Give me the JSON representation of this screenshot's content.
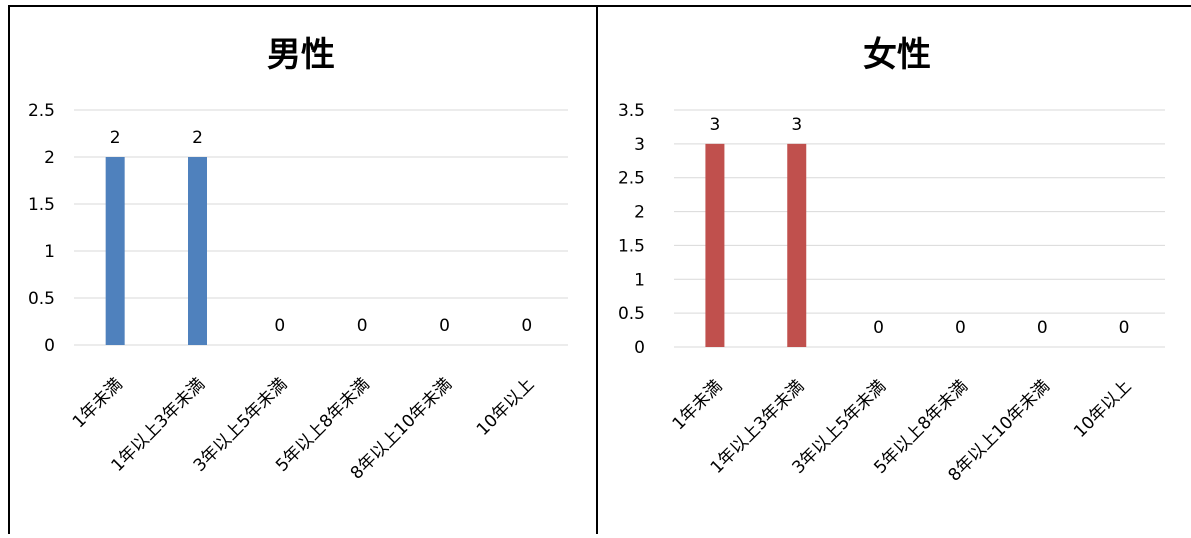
{
  "chart_data": [
    {
      "type": "bar",
      "title": "男性",
      "categories": [
        "1年未満",
        "1年以上3年未満",
        "3年以上5年未満",
        "5年以上8年未満",
        "8年以上10年未満",
        "10年以上"
      ],
      "values": [
        2,
        2,
        0,
        0,
        0,
        0
      ],
      "data_labels": [
        "2",
        "2",
        "0",
        "0",
        "0",
        "0"
      ],
      "yticks": [
        "0",
        "0.5",
        "1",
        "1.5",
        "2",
        "2.5"
      ],
      "ylim": [
        0,
        2.5
      ],
      "grid": true,
      "legend": "none",
      "color": "#4f81bd"
    },
    {
      "type": "bar",
      "title": "女性",
      "categories": [
        "1年未満",
        "1年以上3年未満",
        "3年以上5年未満",
        "5年以上8年未満",
        "8年以上10年未満",
        "10年以上"
      ],
      "values": [
        3,
        3,
        0,
        0,
        0,
        0
      ],
      "data_labels": [
        "3",
        "3",
        "0",
        "0",
        "0",
        "0"
      ],
      "yticks": [
        "0",
        "0.5",
        "1",
        "1.5",
        "2",
        "2.5",
        "3",
        "3.5"
      ],
      "ylim": [
        0,
        3.5
      ],
      "grid": true,
      "legend": "none",
      "color": "#c0504d"
    }
  ]
}
